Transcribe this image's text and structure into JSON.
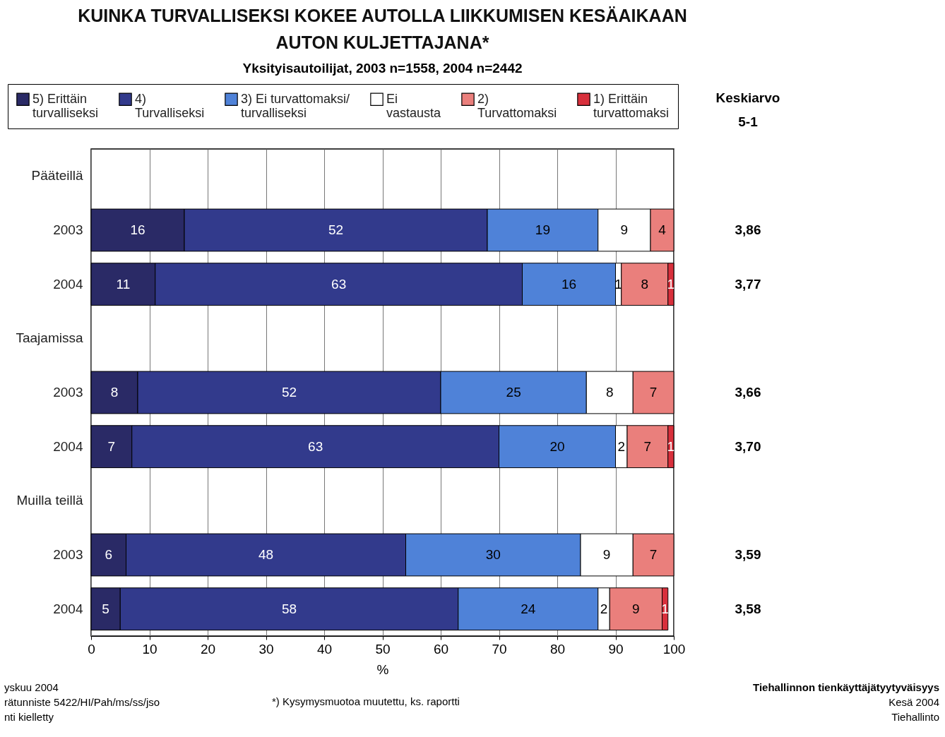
{
  "chart_data": {
    "type": "bar",
    "orientation": "horizontal",
    "stacked": true,
    "title": [
      "KUINKA TURVALLISEKSI KOKEE AUTOLLA LIIKKUMISEN KESÄAIKAAN",
      "AUTON KULJETTAJANA*"
    ],
    "subtitle": "Yksityisautoilijat, 2003 n=1558, 2004 n=2442",
    "xlabel": "%",
    "categories": [
      "Pääteillä",
      "2003",
      "2004",
      "Taajamissa",
      "2003",
      "2004",
      "Muilla teillä",
      "2003",
      "2004"
    ],
    "series": [
      {
        "name": "5) Erittäin turvalliseksi",
        "color": "#2a2a66",
        "values": [
          null,
          16,
          11,
          null,
          8,
          7,
          null,
          6,
          5
        ]
      },
      {
        "name": "4) Turvalliseksi",
        "color": "#323a8c",
        "values": [
          null,
          52,
          63,
          null,
          52,
          63,
          null,
          48,
          58
        ]
      },
      {
        "name": "3) Ei turvattomaksi/turvalliseksi",
        "color": "#4f82d8",
        "values": [
          null,
          19,
          16,
          null,
          25,
          20,
          null,
          30,
          24
        ]
      },
      {
        "name": "Ei vastausta",
        "color": "#ffffff",
        "values": [
          null,
          9,
          1,
          null,
          8,
          2,
          null,
          9,
          2
        ]
      },
      {
        "name": "2) Turvattomaksi",
        "color": "#ea7f7c",
        "values": [
          null,
          4,
          8,
          null,
          7,
          7,
          null,
          7,
          9
        ]
      },
      {
        "name": "1) Erittäin turvattomaksi",
        "color": "#d8303c",
        "values": [
          null,
          null,
          1,
          null,
          null,
          1,
          null,
          null,
          1
        ]
      }
    ],
    "data_labels": true,
    "xlim": [
      0,
      100
    ],
    "xticks": [
      0,
      10,
      20,
      30,
      40,
      50,
      60,
      70,
      80,
      90,
      100
    ],
    "grid": "x",
    "legend": "top",
    "annotations": [
      "Keskiarvo 5-1",
      "3,86",
      "3,77",
      "3,66",
      "3,70",
      "3,59",
      "3,58",
      "yskuu 2004",
      "rätunniste 5422/HI/Pah/ms/ss/jso",
      "nti kielletty",
      "*) Kysymysmuotoa muutettu, ks. raportti",
      "Tiehallinnon tienkäyttäjätyytyväisyys",
      "Kesä 2004",
      "Tiehallinto"
    ]
  }
}
